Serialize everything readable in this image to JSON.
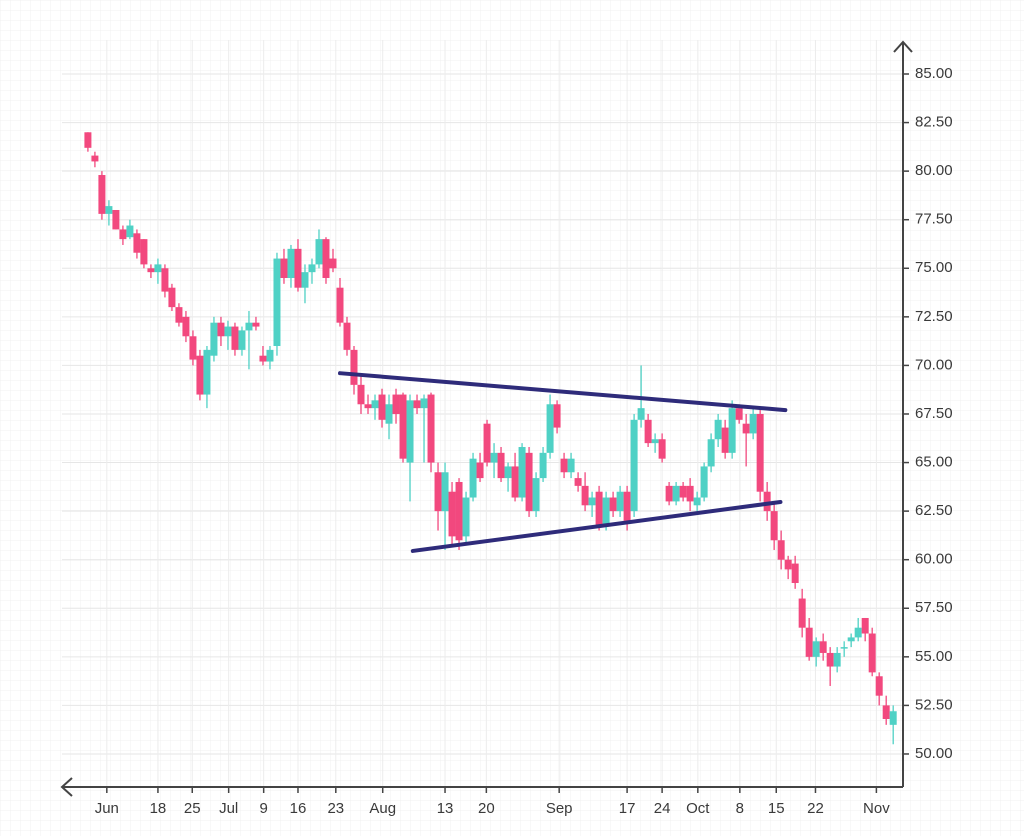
{
  "chart_data": {
    "type": "candlestick",
    "up_color": "#4fd1c5",
    "down_color": "#f2487e",
    "trend_color": "#2e2b7a",
    "grid": true,
    "xlim": [
      -3.7,
      116.4
    ],
    "ylim": [
      48.3,
      86.75
    ],
    "yticks": [
      {
        "value": 50,
        "label": "50.00"
      },
      {
        "value": 52.5,
        "label": "52.50"
      },
      {
        "value": 55,
        "label": "55.00"
      },
      {
        "value": 57.5,
        "label": "57.50"
      },
      {
        "value": 60,
        "label": "60.00"
      },
      {
        "value": 62.5,
        "label": "62.50"
      },
      {
        "value": 65,
        "label": "65.00"
      },
      {
        "value": 67.5,
        "label": "67.50"
      },
      {
        "value": 70,
        "label": "70.00"
      },
      {
        "value": 72.5,
        "label": "72.50"
      },
      {
        "value": 75,
        "label": "75.00"
      },
      {
        "value": 77.5,
        "label": "77.50"
      },
      {
        "value": 80,
        "label": "80.00"
      },
      {
        "value": 82.5,
        "label": "82.50"
      },
      {
        "value": 85,
        "label": "85.00"
      }
    ],
    "xticks": [
      {
        "value": 2.7,
        "label": "Jun"
      },
      {
        "value": 10,
        "label": "18"
      },
      {
        "value": 14.9,
        "label": "25"
      },
      {
        "value": 20.1,
        "label": "Jul"
      },
      {
        "value": 25.1,
        "label": "9"
      },
      {
        "value": 30,
        "label": "16"
      },
      {
        "value": 35.4,
        "label": "23"
      },
      {
        "value": 42.1,
        "label": "Aug"
      },
      {
        "value": 51,
        "label": "13"
      },
      {
        "value": 56.9,
        "label": "20"
      },
      {
        "value": 67.3,
        "label": "Sep"
      },
      {
        "value": 77,
        "label": "17"
      },
      {
        "value": 82,
        "label": "24"
      },
      {
        "value": 87.1,
        "label": "Oct"
      },
      {
        "value": 93.1,
        "label": "8"
      },
      {
        "value": 98.3,
        "label": "15"
      },
      {
        "value": 103.9,
        "label": "22"
      },
      {
        "value": 112.6,
        "label": "Nov"
      }
    ],
    "x": [
      0,
      1,
      2,
      3,
      4,
      5,
      6,
      7,
      8,
      9,
      10,
      11,
      12,
      13,
      14,
      15,
      16,
      17,
      18,
      19,
      20,
      21,
      22,
      23,
      24,
      25,
      26,
      27,
      28,
      29,
      30,
      31,
      32,
      33,
      34,
      35,
      36,
      37,
      38,
      39,
      40,
      41,
      42,
      43,
      44,
      45,
      46,
      47,
      48,
      49,
      50,
      51,
      52,
      53,
      54,
      55,
      56,
      57,
      58,
      59,
      60,
      61,
      62,
      63,
      64,
      65,
      66,
      67,
      68,
      69,
      70,
      71,
      72,
      73,
      74,
      75,
      76,
      77,
      78,
      79,
      80,
      81,
      82,
      83,
      84,
      85,
      86,
      87,
      88,
      89,
      90,
      91,
      92,
      93,
      94,
      95,
      96,
      97,
      98,
      99,
      100,
      101,
      102,
      103,
      104,
      105,
      106,
      107,
      108,
      109,
      110,
      111,
      112,
      113,
      114,
      115
    ],
    "ohlc": [
      [
        82,
        82,
        81,
        81.2
      ],
      [
        80.8,
        81,
        80.2,
        80.5
      ],
      [
        79.8,
        80,
        77.5,
        77.8
      ],
      [
        77.8,
        78.5,
        77.2,
        78.2
      ],
      [
        78,
        78,
        77,
        77
      ],
      [
        77,
        77.2,
        76.2,
        76.5
      ],
      [
        76.6,
        77.5,
        76.5,
        77.2
      ],
      [
        76.8,
        77,
        75.5,
        75.8
      ],
      [
        76.5,
        76.5,
        75,
        75.2
      ],
      [
        75,
        75.2,
        74.5,
        74.8
      ],
      [
        74.8,
        75.5,
        74.2,
        75.2
      ],
      [
        75,
        75.2,
        73.5,
        73.8
      ],
      [
        74,
        74.2,
        72.8,
        73
      ],
      [
        73,
        73.2,
        72,
        72.2
      ],
      [
        72.5,
        72.8,
        71.2,
        71.5
      ],
      [
        71.5,
        71.8,
        70,
        70.3
      ],
      [
        70.5,
        70.8,
        68.2,
        68.5
      ],
      [
        68.5,
        71,
        67.8,
        70.8
      ],
      [
        70.5,
        72.5,
        70.2,
        72.2
      ],
      [
        72.2,
        72.5,
        71,
        71.5
      ],
      [
        71.5,
        72.3,
        70.8,
        72
      ],
      [
        72,
        72.2,
        70.5,
        70.8
      ],
      [
        70.8,
        72,
        70.5,
        71.8
      ],
      [
        71.8,
        72.8,
        69.8,
        72.2
      ],
      [
        72.2,
        72.5,
        71.8,
        72
      ],
      [
        70.5,
        71,
        70,
        70.2
      ],
      [
        70.2,
        71,
        69.8,
        70.8
      ],
      [
        71,
        75.8,
        70.5,
        75.5
      ],
      [
        75.5,
        76,
        74.2,
        74.5
      ],
      [
        74.5,
        76.2,
        74,
        76
      ],
      [
        76,
        76.5,
        73.8,
        74
      ],
      [
        74,
        75.2,
        73.2,
        74.8
      ],
      [
        74.8,
        75.5,
        74.2,
        75.2
      ],
      [
        75.2,
        77,
        75,
        76.5
      ],
      [
        76.5,
        76.6,
        74.2,
        74.5
      ],
      [
        75.5,
        76,
        74.8,
        75
      ],
      [
        74,
        74.5,
        72,
        72.2
      ],
      [
        72.2,
        72.5,
        70.5,
        70.8
      ],
      [
        70.8,
        71,
        68.5,
        69
      ],
      [
        69,
        69.5,
        67.5,
        68
      ],
      [
        68,
        68.5,
        67.5,
        67.8
      ],
      [
        67.8,
        68.5,
        67.2,
        68.2
      ],
      [
        68.5,
        68.8,
        66.8,
        67.2
      ],
      [
        67,
        68.5,
        66.2,
        68
      ],
      [
        68.5,
        68.8,
        67,
        67.5
      ],
      [
        68.5,
        68.6,
        65,
        65.2
      ],
      [
        65,
        68.5,
        63,
        68.2
      ],
      [
        68.2,
        68.5,
        67.5,
        67.8
      ],
      [
        67.8,
        68.5,
        65,
        68.3
      ],
      [
        68.5,
        68.6,
        64.5,
        65
      ],
      [
        64.5,
        65,
        61.5,
        62.5
      ],
      [
        62.5,
        65,
        60.5,
        64.5
      ],
      [
        63.5,
        64,
        60.8,
        61.2
      ],
      [
        64,
        64.2,
        60.5,
        61
      ],
      [
        61.2,
        63.5,
        60.8,
        63.2
      ],
      [
        63.2,
        65.5,
        63,
        65.2
      ],
      [
        65,
        65.5,
        64,
        64.2
      ],
      [
        67,
        67.2,
        64.8,
        65
      ],
      [
        65,
        66,
        64.2,
        65.5
      ],
      [
        65.5,
        65.8,
        64,
        64.2
      ],
      [
        64.2,
        65,
        63.5,
        64.8
      ],
      [
        64.8,
        65.5,
        63,
        63.2
      ],
      [
        63.2,
        66,
        63,
        65.8
      ],
      [
        65.5,
        65.8,
        62.2,
        62.5
      ],
      [
        62.5,
        64.5,
        62.2,
        64.2
      ],
      [
        64.2,
        65.8,
        64,
        65.5
      ],
      [
        65.5,
        68.5,
        65.2,
        68
      ],
      [
        68,
        68.2,
        66.5,
        66.8
      ],
      [
        65.2,
        65.5,
        64.2,
        64.5
      ],
      [
        64.5,
        65.5,
        64.2,
        65.2
      ],
      [
        64.2,
        64.5,
        63.5,
        63.8
      ],
      [
        63.8,
        64.5,
        62.5,
        62.8
      ],
      [
        62.8,
        63.5,
        62.2,
        63.2
      ],
      [
        63.5,
        63.8,
        61.5,
        61.8
      ],
      [
        61.8,
        63.5,
        61.5,
        63.2
      ],
      [
        63.2,
        63.5,
        62.2,
        62.5
      ],
      [
        62.5,
        63.8,
        62.2,
        63.5
      ],
      [
        63.5,
        63.8,
        61.5,
        62
      ],
      [
        62.5,
        67.5,
        62.2,
        67.2
      ],
      [
        67.2,
        70,
        66.8,
        67.8
      ],
      [
        67.2,
        67.5,
        65.8,
        66
      ],
      [
        66,
        66.5,
        65.5,
        66.2
      ],
      [
        66.2,
        66.5,
        65,
        65.2
      ],
      [
        63.8,
        64,
        62.8,
        63
      ],
      [
        63,
        64,
        62.8,
        63.8
      ],
      [
        63.8,
        64,
        63,
        63.2
      ],
      [
        63.8,
        64.2,
        62.5,
        63
      ],
      [
        62.8,
        63.5,
        62.5,
        63.2
      ],
      [
        63.2,
        65,
        63,
        64.8
      ],
      [
        64.8,
        66.5,
        64.5,
        66.2
      ],
      [
        66.2,
        67.5,
        65.8,
        67.2
      ],
      [
        66.8,
        67.2,
        65.2,
        65.5
      ],
      [
        65.5,
        68.2,
        65.2,
        67.8
      ],
      [
        67.8,
        68,
        67,
        67.2
      ],
      [
        67,
        67.5,
        64.8,
        66.5
      ],
      [
        66.5,
        67.8,
        66.2,
        67.5
      ],
      [
        67.5,
        67.8,
        63,
        63.5
      ],
      [
        63.5,
        64,
        62,
        62.5
      ],
      [
        62.5,
        63,
        60.5,
        61
      ],
      [
        61,
        61.5,
        59.5,
        60
      ],
      [
        60,
        60.2,
        59,
        59.5
      ],
      [
        59.8,
        60.2,
        58.5,
        58.8
      ],
      [
        58,
        58.5,
        56,
        56.5
      ],
      [
        56.5,
        57,
        54.8,
        55
      ],
      [
        55,
        56,
        54.5,
        55.8
      ],
      [
        55.8,
        56.2,
        54.8,
        55.2
      ],
      [
        55.2,
        55.5,
        53.5,
        54.5
      ],
      [
        54.5,
        55.5,
        54.2,
        55.2
      ],
      [
        55.5,
        55.8,
        55,
        55.5
      ],
      [
        55.8,
        56.2,
        55.5,
        56
      ],
      [
        56,
        57,
        55.8,
        56.5
      ],
      [
        57,
        57,
        55.8,
        56.2
      ],
      [
        56.2,
        56.5,
        54,
        54.2
      ],
      [
        54,
        54.2,
        52.5,
        53
      ],
      [
        52.5,
        53,
        51.5,
        51.8
      ],
      [
        51.5,
        52.5,
        50.5,
        52.2
      ]
    ],
    "trendlines": [
      {
        "x": [
          36,
          99.6
        ],
        "y": [
          69.6,
          67.7
        ]
      },
      {
        "x": [
          46.4,
          98.9
        ],
        "y": [
          60.45,
          62.97
        ]
      }
    ]
  }
}
